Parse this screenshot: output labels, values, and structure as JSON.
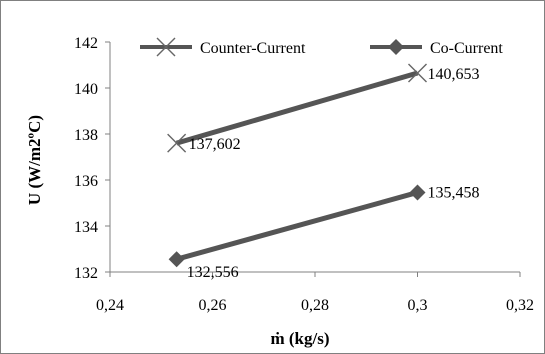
{
  "chart_data": {
    "type": "line",
    "title": "",
    "xlabel": "ṁ (kg/s)",
    "ylabel": "U (W/m2ºC)",
    "xlim": [
      0.24,
      0.32
    ],
    "ylim": [
      132,
      142
    ],
    "x_ticks": [
      "0,24",
      "0,26",
      "0,28",
      "0,3",
      "0,32"
    ],
    "y_ticks": [
      "132",
      "134",
      "136",
      "138",
      "140",
      "142"
    ],
    "grid": false,
    "legend_position": "top",
    "series": [
      {
        "name": "Counter-Current",
        "marker": "x",
        "color": "#555555",
        "x": [
          0.253,
          0.3
        ],
        "y": [
          137.602,
          140.653
        ],
        "data_labels": [
          "137,602",
          "140,653"
        ]
      },
      {
        "name": "Co-Current",
        "marker": "diamond",
        "color": "#555555",
        "x": [
          0.253,
          0.3
        ],
        "y": [
          132.556,
          135.458
        ],
        "data_labels": [
          "132,556",
          "135,458"
        ]
      }
    ]
  }
}
